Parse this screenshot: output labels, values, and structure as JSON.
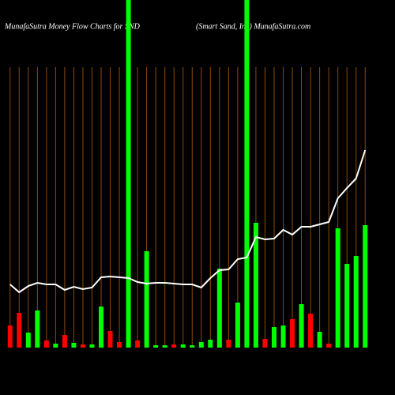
{
  "chart_data": {
    "type": "bar",
    "title": "MunafaSutra  Money  Flow  Charts for SND",
    "subtitle": "(Smart Sand,  Inc)  MunafaSutra.com",
    "categories": [
      null,
      null,
      null,
      null,
      null,
      null,
      null,
      null,
      null,
      null,
      null,
      null,
      null,
      null,
      null,
      null,
      null,
      null,
      null,
      null,
      null,
      null,
      null,
      null,
      null,
      null,
      null,
      null,
      null,
      null,
      null,
      null,
      null,
      null,
      null,
      null,
      null,
      null,
      null,
      null
    ],
    "values": [
      28,
      44,
      19,
      47,
      9,
      5,
      16,
      6,
      4,
      4,
      52,
      21,
      7,
      445,
      9,
      122,
      3,
      3,
      4,
      4,
      3,
      7,
      10,
      100,
      10,
      57,
      445,
      158,
      11,
      26,
      28,
      36,
      55,
      43,
      20,
      5,
      151,
      106,
      116,
      155
    ],
    "colors": [
      "#ff0000",
      "#ff0000",
      "#00ff00",
      "#00ff00",
      "#ff0000",
      "#00ff00",
      "#ff0000",
      "#00ff00",
      "#ff0000",
      "#00ff00",
      "#00ff00",
      "#ff0000",
      "#ff0000",
      "#00ff00",
      "#ff0000",
      "#00ff00",
      "#00ff00",
      "#00ff00",
      "#ff0000",
      "#00ff00",
      "#00ff00",
      "#00ff00",
      "#00ff00",
      "#00ff00",
      "#ff0000",
      "#00ff00",
      "#00ff00",
      "#00ff00",
      "#ff0000",
      "#00ff00",
      "#00ff00",
      "#ff0000",
      "#00ff00",
      "#ff0000",
      "#00ff00",
      "#ff0000",
      "#00ff00",
      "#00ff00",
      "#00ff00",
      "#00ff00"
    ],
    "line": {
      "color": "#ffffff",
      "values": [
        80,
        70,
        78,
        82,
        80,
        80,
        73,
        77,
        74,
        76,
        89,
        90,
        89,
        88,
        83,
        81,
        82,
        82,
        81,
        80,
        80,
        76,
        88,
        98,
        99,
        112,
        114,
        140,
        137,
        138,
        149,
        143,
        153,
        153,
        156,
        159,
        189,
        202,
        214,
        250
      ]
    },
    "ylim": [
      0,
      440
    ],
    "grid_color": "#8b4a0c"
  }
}
